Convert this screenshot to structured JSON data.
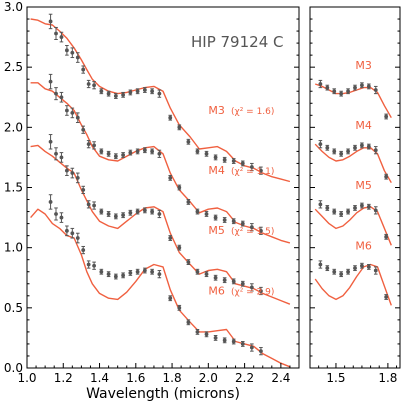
{
  "chart_data": [
    {
      "panel": "main",
      "type": "scatter",
      "title": "HIP 79124 C",
      "xlabel": "Wavelength (microns)",
      "ylabel": "",
      "xlim": [
        1.0,
        2.5
      ],
      "ylim": [
        0.0,
        3.0
      ],
      "xticks": [
        "1.0",
        "1.2",
        "1.4",
        "1.6",
        "1.8",
        "2.0",
        "2.2",
        "2.4"
      ],
      "yticks": [
        "0.0",
        "0.5",
        "1.0",
        "1.5",
        "2.0",
        "2.5",
        "3.0"
      ],
      "colors": {
        "data": "#555555",
        "model": "#f06040",
        "title": "#555555"
      },
      "offsets": [
        1.5,
        1.0,
        0.5,
        0.0
      ],
      "data_spectrum": {
        "x": [
          1.13,
          1.16,
          1.19,
          1.22,
          1.25,
          1.28,
          1.31,
          1.34,
          1.37,
          1.41,
          1.45,
          1.49,
          1.53,
          1.57,
          1.61,
          1.65,
          1.69,
          1.73,
          1.79,
          1.84,
          1.89,
          1.94,
          1.99,
          2.04,
          2.09,
          2.14,
          2.19,
          2.24,
          2.29
        ],
        "y": [
          1.38,
          1.28,
          1.25,
          1.14,
          1.12,
          1.08,
          0.98,
          0.86,
          0.85,
          0.8,
          0.78,
          0.76,
          0.77,
          0.79,
          0.8,
          0.81,
          0.8,
          0.78,
          0.58,
          0.5,
          0.38,
          0.3,
          0.28,
          0.25,
          0.23,
          0.22,
          0.2,
          0.17,
          0.14
        ],
        "err": [
          0.06,
          0.05,
          0.04,
          0.04,
          0.04,
          0.04,
          0.03,
          0.03,
          0.03,
          0.02,
          0.02,
          0.02,
          0.02,
          0.02,
          0.02,
          0.02,
          0.02,
          0.03,
          0.02,
          0.02,
          0.02,
          0.02,
          0.02,
          0.02,
          0.02,
          0.02,
          0.02,
          0.03,
          0.03
        ]
      },
      "models": [
        {
          "name": "M3",
          "chi2": "(χ² = 1.6)",
          "offset": 1.5,
          "x": [
            1.02,
            1.06,
            1.1,
            1.14,
            1.18,
            1.22,
            1.26,
            1.3,
            1.33,
            1.36,
            1.4,
            1.45,
            1.5,
            1.55,
            1.6,
            1.65,
            1.7,
            1.75,
            1.79,
            1.84,
            1.9,
            1.95,
            2.0,
            2.05,
            2.1,
            2.15,
            2.2,
            2.25,
            2.3,
            2.35,
            2.4,
            2.45
          ],
          "y": [
            1.4,
            1.39,
            1.36,
            1.35,
            1.3,
            1.24,
            1.16,
            1.06,
            0.98,
            0.9,
            0.84,
            0.8,
            0.78,
            0.79,
            0.81,
            0.83,
            0.84,
            0.8,
            0.66,
            0.52,
            0.42,
            0.32,
            0.33,
            0.34,
            0.3,
            0.22,
            0.18,
            0.16,
            0.12,
            0.09,
            0.07,
            0.05
          ]
        },
        {
          "name": "M4",
          "chi2": "(χ² = 1.1)",
          "offset": 1.0,
          "x": [
            1.02,
            1.06,
            1.1,
            1.14,
            1.18,
            1.22,
            1.26,
            1.3,
            1.33,
            1.36,
            1.4,
            1.45,
            1.5,
            1.55,
            1.6,
            1.65,
            1.7,
            1.75,
            1.79,
            1.84,
            1.9,
            1.95,
            2.0,
            2.05,
            2.1,
            2.15,
            2.2,
            2.25,
            2.3,
            2.35,
            2.4,
            2.45
          ],
          "y": [
            1.37,
            1.37,
            1.32,
            1.3,
            1.25,
            1.2,
            1.14,
            1.02,
            0.94,
            0.84,
            0.76,
            0.73,
            0.72,
            0.76,
            0.8,
            0.83,
            0.84,
            0.78,
            0.62,
            0.48,
            0.38,
            0.29,
            0.32,
            0.33,
            0.3,
            0.21,
            0.18,
            0.16,
            0.12,
            0.09,
            0.06,
            0.04
          ]
        },
        {
          "name": "M5",
          "chi2": "(χ² = 1.5)",
          "offset": 0.5,
          "x": [
            1.02,
            1.06,
            1.1,
            1.14,
            1.18,
            1.22,
            1.26,
            1.3,
            1.33,
            1.36,
            1.4,
            1.45,
            1.5,
            1.55,
            1.6,
            1.65,
            1.7,
            1.75,
            1.79,
            1.84,
            1.9,
            1.95,
            2.0,
            2.05,
            2.1,
            2.15,
            2.2,
            2.25,
            2.3,
            2.35,
            2.4,
            2.45
          ],
          "y": [
            1.34,
            1.35,
            1.3,
            1.26,
            1.21,
            1.16,
            1.12,
            0.98,
            0.89,
            0.8,
            0.72,
            0.68,
            0.66,
            0.72,
            0.78,
            0.83,
            0.84,
            0.8,
            0.62,
            0.46,
            0.36,
            0.28,
            0.31,
            0.32,
            0.3,
            0.2,
            0.18,
            0.16,
            0.12,
            0.09,
            0.06,
            0.03
          ]
        },
        {
          "name": "M6",
          "chi2": "(χ² = 2.9)",
          "offset": 0.0,
          "x": [
            1.02,
            1.06,
            1.1,
            1.14,
            1.18,
            1.22,
            1.26,
            1.3,
            1.33,
            1.36,
            1.4,
            1.45,
            1.5,
            1.55,
            1.6,
            1.65,
            1.7,
            1.75,
            1.79,
            1.84,
            1.9,
            1.95,
            2.0,
            2.05,
            2.1,
            2.15,
            2.2,
            2.25,
            2.3,
            2.35,
            2.4,
            2.45
          ],
          "y": [
            1.25,
            1.32,
            1.28,
            1.2,
            1.16,
            1.1,
            1.08,
            0.94,
            0.8,
            0.7,
            0.62,
            0.58,
            0.57,
            0.63,
            0.72,
            0.82,
            0.86,
            0.84,
            0.65,
            0.48,
            0.38,
            0.3,
            0.3,
            0.31,
            0.32,
            0.22,
            0.2,
            0.18,
            0.12,
            0.08,
            0.04,
            0.01
          ]
        }
      ]
    },
    {
      "panel": "zoom",
      "type": "scatter",
      "xlim": [
        1.35,
        1.87
      ],
      "ylim": [
        0.0,
        3.0
      ],
      "xticks": [
        "1.5",
        "1.8"
      ],
      "data_spectrum": {
        "x": [
          1.41,
          1.45,
          1.49,
          1.53,
          1.57,
          1.61,
          1.65,
          1.69,
          1.73,
          1.79
        ],
        "y": [
          0.86,
          0.83,
          0.8,
          0.78,
          0.8,
          0.83,
          0.85,
          0.84,
          0.81,
          0.59
        ],
        "err": [
          0.03,
          0.02,
          0.02,
          0.02,
          0.02,
          0.02,
          0.02,
          0.02,
          0.03,
          0.02
        ]
      },
      "models": [
        {
          "name": "M3",
          "offset": 1.5,
          "x": [
            1.38,
            1.42,
            1.46,
            1.5,
            1.54,
            1.58,
            1.62,
            1.66,
            1.7,
            1.74,
            1.78,
            1.82
          ],
          "y": [
            0.86,
            0.84,
            0.81,
            0.78,
            0.78,
            0.79,
            0.81,
            0.83,
            0.83,
            0.79,
            0.68,
            0.58
          ]
        },
        {
          "name": "M4",
          "offset": 1.0,
          "x": [
            1.38,
            1.42,
            1.46,
            1.5,
            1.54,
            1.58,
            1.62,
            1.66,
            1.7,
            1.74,
            1.78,
            1.82
          ],
          "y": [
            0.86,
            0.8,
            0.75,
            0.72,
            0.73,
            0.76,
            0.8,
            0.83,
            0.83,
            0.78,
            0.64,
            0.54
          ]
        },
        {
          "name": "M5",
          "offset": 0.5,
          "x": [
            1.38,
            1.42,
            1.46,
            1.5,
            1.54,
            1.58,
            1.62,
            1.66,
            1.7,
            1.74,
            1.78,
            1.82
          ],
          "y": [
            0.82,
            0.76,
            0.7,
            0.66,
            0.68,
            0.73,
            0.79,
            0.83,
            0.84,
            0.8,
            0.66,
            0.52
          ]
        },
        {
          "name": "M6",
          "offset": 0.0,
          "x": [
            1.38,
            1.42,
            1.46,
            1.5,
            1.54,
            1.58,
            1.62,
            1.66,
            1.7,
            1.74,
            1.78,
            1.82
          ],
          "y": [
            0.74,
            0.66,
            0.6,
            0.57,
            0.6,
            0.67,
            0.76,
            0.84,
            0.86,
            0.84,
            0.68,
            0.52
          ]
        }
      ]
    }
  ]
}
